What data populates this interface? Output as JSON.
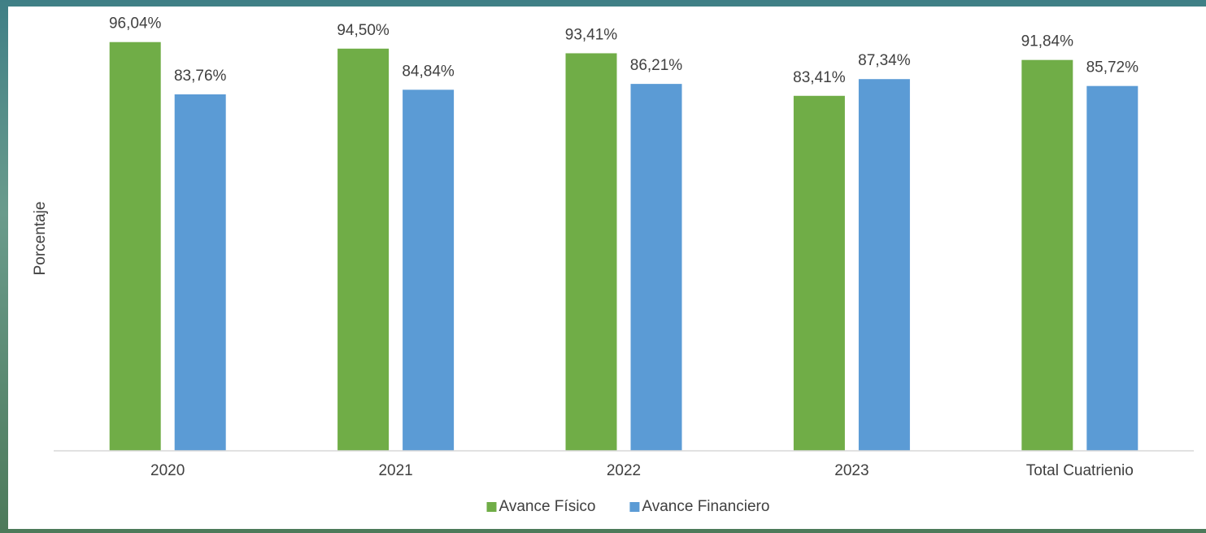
{
  "chart_data": {
    "type": "bar",
    "y_label": "Porcentaje",
    "categories": [
      "2020",
      "2021",
      "2022",
      "2023",
      "Total Cuatrienio"
    ],
    "series": [
      {
        "name": "Avance Físico",
        "color": "#70ad47",
        "values": [
          96.04,
          94.5,
          93.41,
          83.41,
          91.84
        ],
        "value_labels": [
          "96,04%",
          "94,50%",
          "93,41%",
          "83,41%",
          "91,84%"
        ]
      },
      {
        "name": "Avance Financiero",
        "color": "#5b9bd5",
        "values": [
          83.76,
          84.84,
          86.21,
          87.34,
          85.72
        ],
        "value_labels": [
          "83,76%",
          "84,84%",
          "86,21%",
          "87,34%",
          "85,72%"
        ]
      }
    ],
    "ylim": [
      0,
      100
    ],
    "legend": "bottom"
  }
}
